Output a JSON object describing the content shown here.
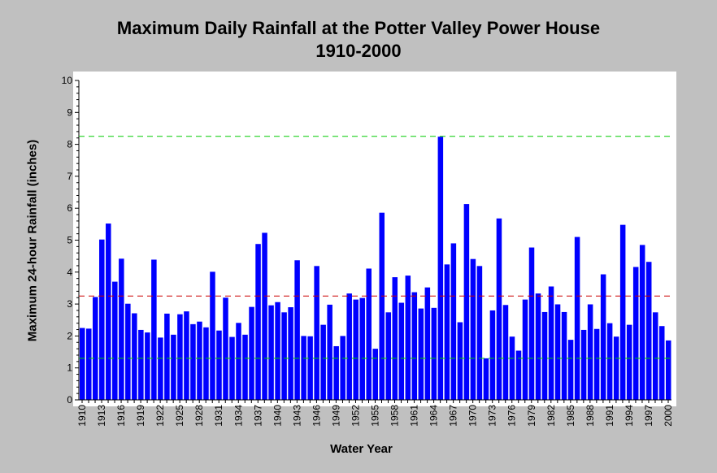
{
  "chart_data": {
    "type": "bar",
    "title": "Maximum Daily Rainfall at the Potter Valley Power House",
    "subtitle": "1910-2000",
    "xlabel": "Water Year",
    "ylabel": "Maximum 24-hour Rainfall (inches)",
    "ylim": [
      0,
      10
    ],
    "yticks": [
      0,
      1,
      2,
      3,
      4,
      5,
      6,
      7,
      8,
      9,
      10
    ],
    "grid": false,
    "bar_color": "#0000ff",
    "x_start": 1910,
    "x_end": 2000,
    "xtick_labels": [
      "1910",
      "1913",
      "1916",
      "1919",
      "1922",
      "1925",
      "1928",
      "1931",
      "1934",
      "1937",
      "1940",
      "1943",
      "1946",
      "1949",
      "1952",
      "1955",
      "1958",
      "1961",
      "1964",
      "1967",
      "1970",
      "1973",
      "1976",
      "1979",
      "1982",
      "1985",
      "1988",
      "1991",
      "1994",
      "1997",
      "2000"
    ],
    "values": [
      2.25,
      2.23,
      3.22,
      5.02,
      5.52,
      3.7,
      4.42,
      3.01,
      2.71,
      2.19,
      2.11,
      4.39,
      1.95,
      2.7,
      2.04,
      2.68,
      2.77,
      2.37,
      2.45,
      2.27,
      4.01,
      2.17,
      3.2,
      1.97,
      2.41,
      2.04,
      2.91,
      4.88,
      5.23,
      2.96,
      3.06,
      2.74,
      2.9,
      4.37,
      2.0,
      1.99,
      4.19,
      2.35,
      2.98,
      1.68,
      2.0,
      3.33,
      3.14,
      3.19,
      4.11,
      1.6,
      5.86,
      2.74,
      3.84,
      3.04,
      3.89,
      3.37,
      2.86,
      3.52,
      2.88,
      8.24,
      4.24,
      4.9,
      2.43,
      6.13,
      4.41,
      4.19,
      1.3,
      2.8,
      5.68,
      2.97,
      1.98,
      1.54,
      3.14,
      4.77,
      3.33,
      2.75,
      3.55,
      2.99,
      2.75,
      1.88,
      5.1,
      2.19,
      2.99,
      2.22,
      3.93,
      2.4,
      1.98,
      5.48,
      2.35,
      4.16,
      4.85,
      4.32,
      2.74,
      2.31,
      1.86
    ],
    "reference_lines": [
      {
        "value": 8.25,
        "color": "#00cc00",
        "style": "dashed"
      },
      {
        "value": 3.25,
        "color": "#cc0000",
        "style": "dashed"
      },
      {
        "value": 1.3,
        "color": "#00cc00",
        "style": "dashed"
      }
    ]
  }
}
